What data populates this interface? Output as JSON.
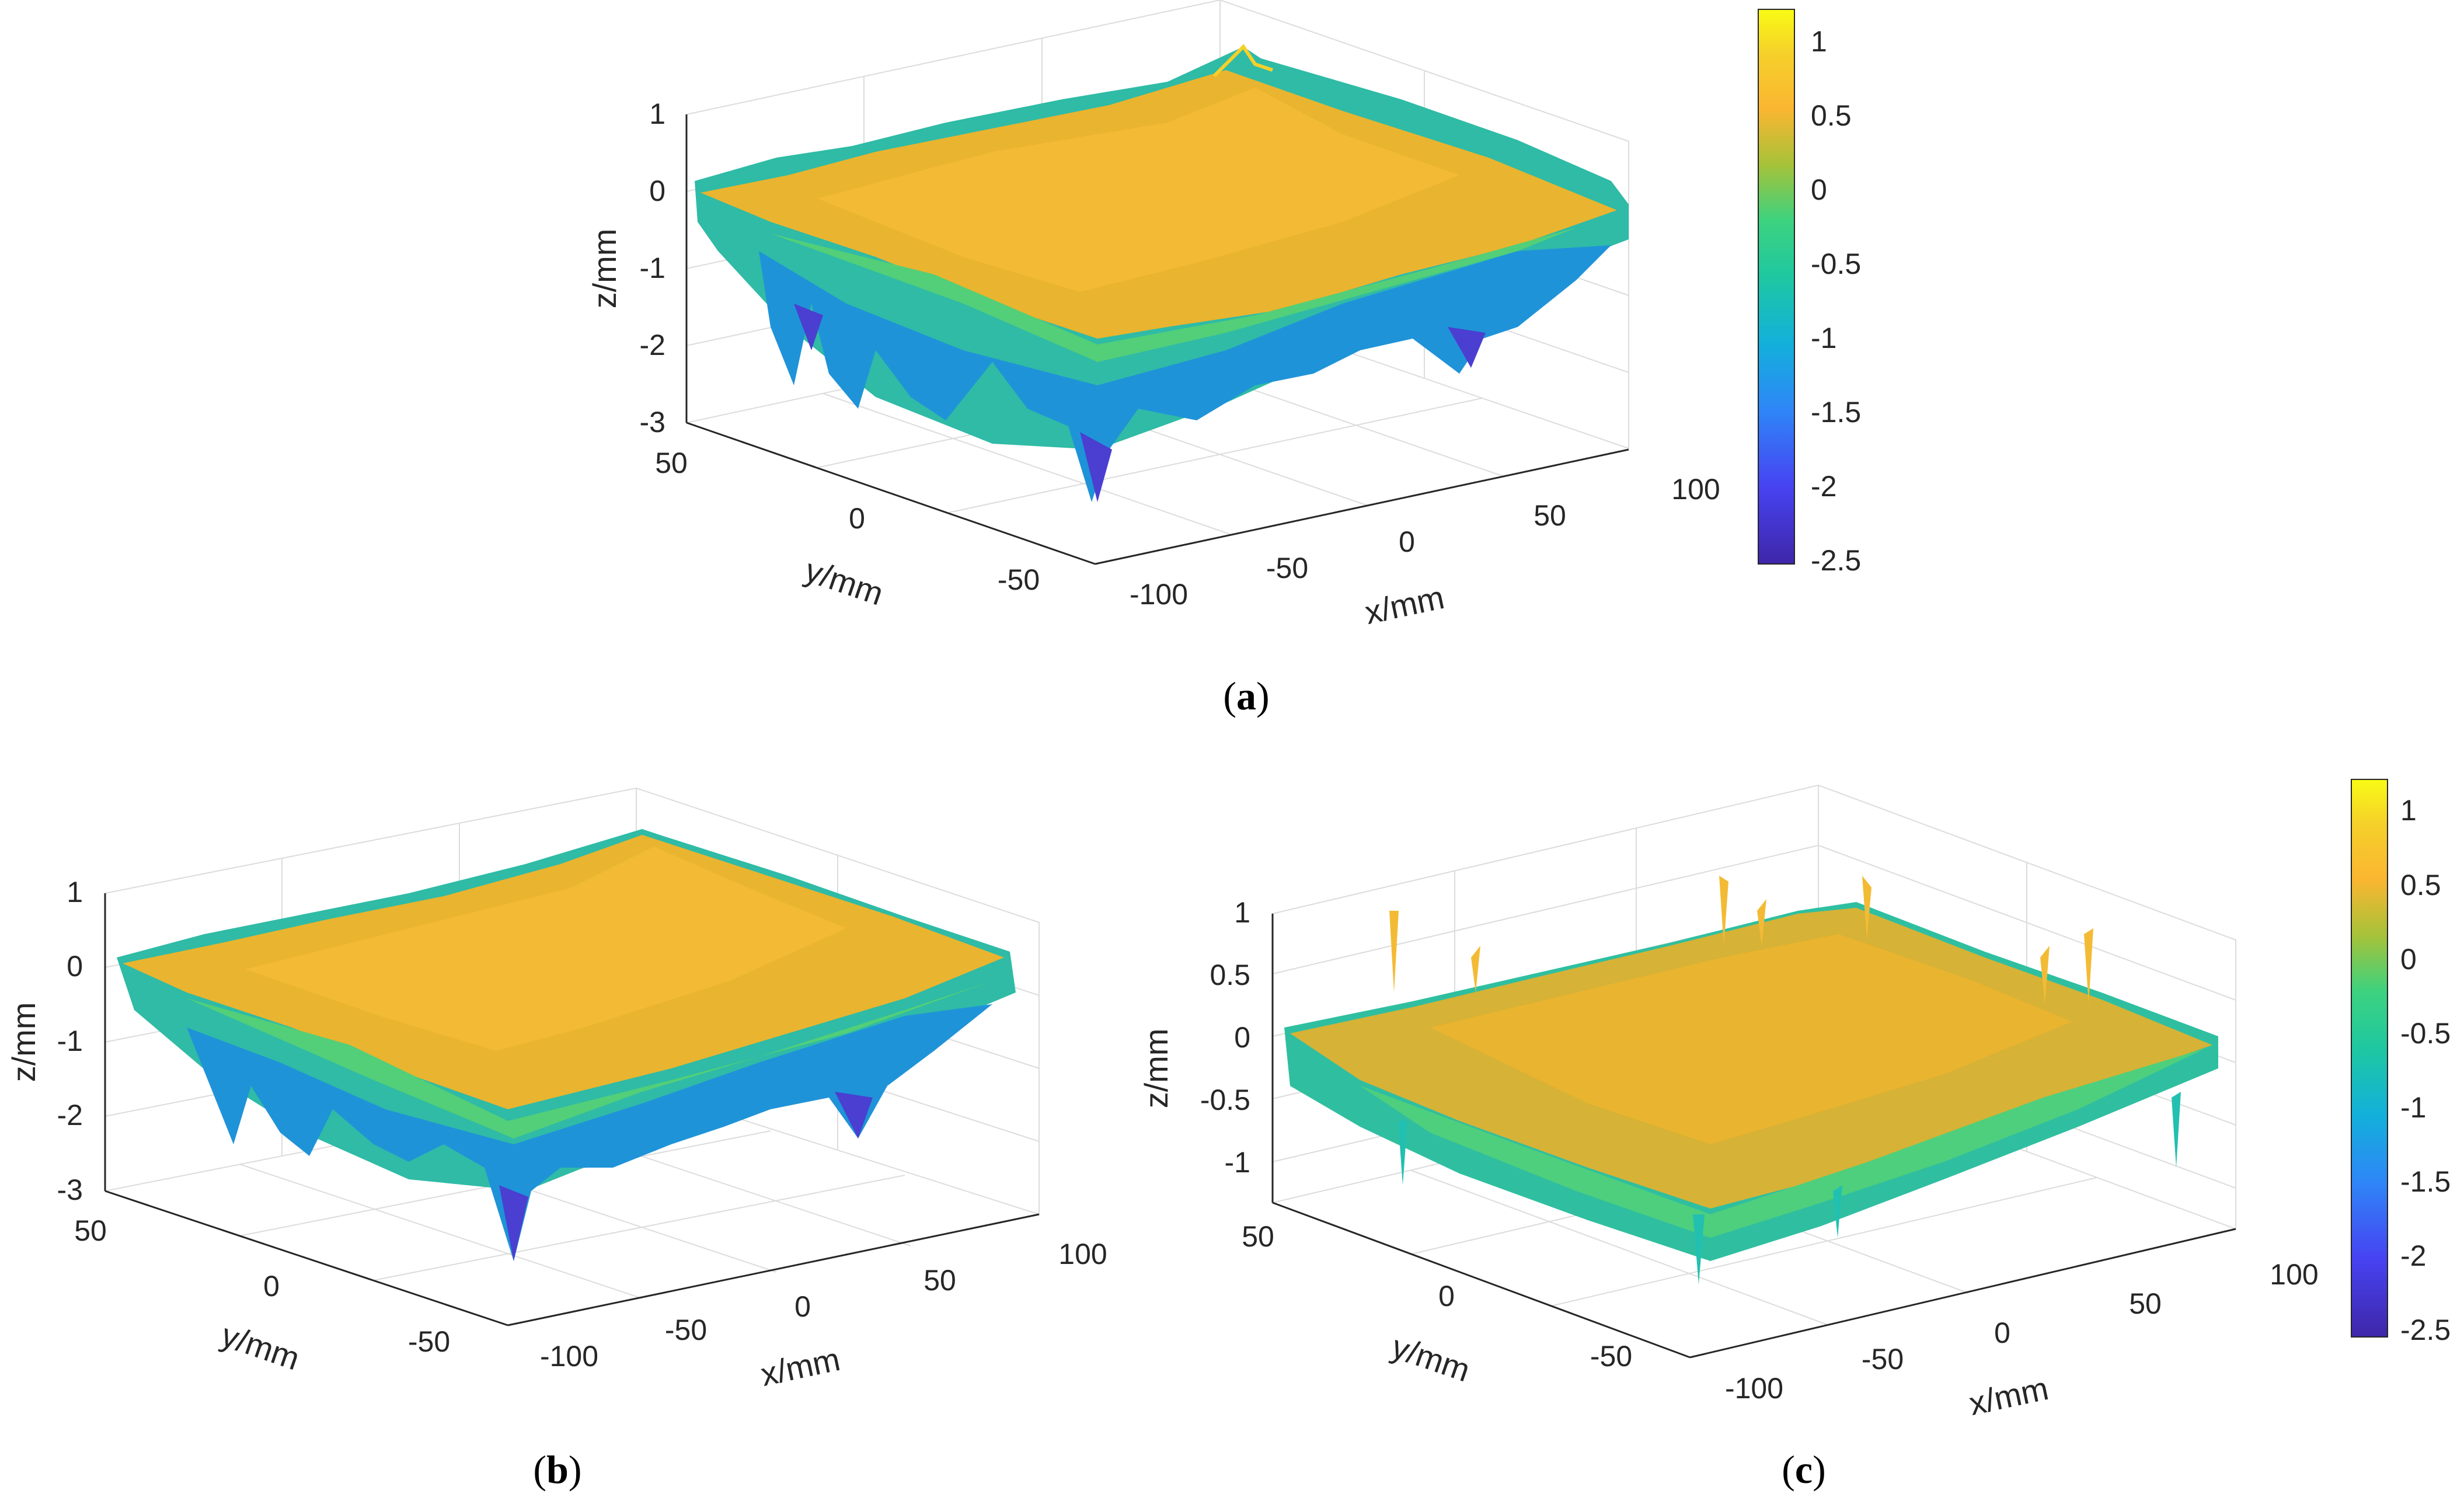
{
  "colors": {
    "colormap": [
      "#3e26a8",
      "#4743f2",
      "#2e87f7",
      "#12b1da",
      "#1fc8a0",
      "#3dd27f",
      "#a6c239",
      "#fbb631",
      "#f5d02a",
      "#f9fb15"
    ],
    "axis": "#262626",
    "grid": "#dcdcdc"
  },
  "chart_data": [
    {
      "type": "surface3d",
      "caption_label": "a",
      "xlabel": "x/mm",
      "ylabel": "y/mm",
      "zlabel": "z/mm",
      "x_ticks": [
        "-100",
        "-50",
        "0",
        "50",
        "100"
      ],
      "y_ticks": [
        "-50",
        "0",
        "50"
      ],
      "z_ticks": [
        "-3",
        "-2",
        "-1",
        "0",
        "1"
      ],
      "xlim": [
        -100,
        100
      ],
      "ylim": [
        -60,
        60
      ],
      "zlim": [
        -3,
        1
      ],
      "z_range": [
        -2.4,
        1.1
      ],
      "colorbar_ticks": [
        "1",
        "0.5",
        "0",
        "-0.5",
        "-1",
        "-1.5",
        "-2",
        "-2.5"
      ],
      "colorbar_range": [
        -2.55,
        1.2
      ],
      "grid": true
    },
    {
      "type": "surface3d",
      "caption_label": "b",
      "xlabel": "x/mm",
      "ylabel": "y/mm",
      "zlabel": "z/mm",
      "x_ticks": [
        "-100",
        "-50",
        "0",
        "50",
        "100"
      ],
      "y_ticks": [
        "-50",
        "0",
        "50"
      ],
      "z_ticks": [
        "-3",
        "-2",
        "-1",
        "0",
        "1"
      ],
      "xlim": [
        -100,
        100
      ],
      "ylim": [
        -60,
        60
      ],
      "zlim": [
        -3,
        1
      ],
      "z_range": [
        -2.2,
        1.0
      ],
      "grid": true
    },
    {
      "type": "surface3d",
      "caption_label": "c",
      "xlabel": "x/mm",
      "ylabel": "y/mm",
      "zlabel": "z/mm",
      "x_ticks": [
        "-100",
        "-50",
        "0",
        "50",
        "100"
      ],
      "y_ticks": [
        "-50",
        "0",
        "50"
      ],
      "z_ticks": [
        "-1",
        "-0.5",
        "0",
        "0.5",
        "1"
      ],
      "xlim": [
        -100,
        100
      ],
      "ylim": [
        -60,
        60
      ],
      "zlim": [
        -1.2,
        1.2
      ],
      "z_range": [
        -1.2,
        1.1
      ],
      "colorbar_ticks": [
        "1",
        "0.5",
        "0",
        "-0.5",
        "-1",
        "-1.5",
        "-2",
        "-2.5"
      ],
      "colorbar_range": [
        -2.55,
        1.2
      ],
      "grid": true
    }
  ]
}
